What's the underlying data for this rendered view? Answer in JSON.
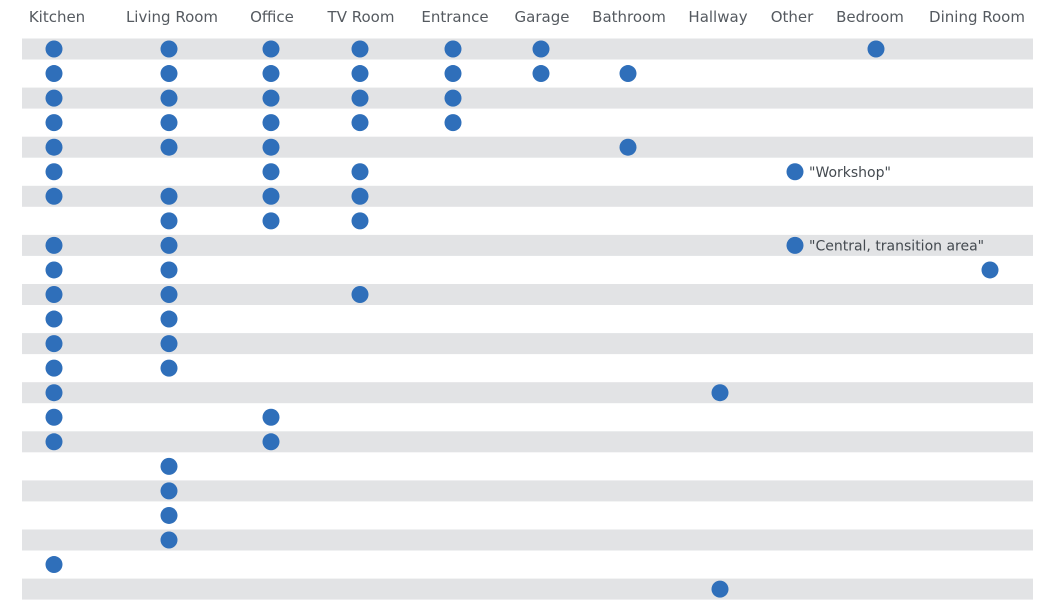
{
  "chart_data": {
    "type": "scatter",
    "title": "",
    "xlabel": "",
    "ylabel": "",
    "categories": [
      "Kitchen",
      "Living Room",
      "Office",
      "TV Room",
      "Entrance",
      "Garage",
      "Bathroom",
      "Hallway",
      "Other",
      "Bedroom",
      "Dining Room"
    ],
    "row_count": 24,
    "alternating_row_bands": true,
    "marker_color": "#2f6fba",
    "band_color": "#e2e3e5",
    "points": [
      {
        "row": 1,
        "category": "Kitchen"
      },
      {
        "row": 1,
        "category": "Living Room"
      },
      {
        "row": 1,
        "category": "Office"
      },
      {
        "row": 1,
        "category": "TV Room"
      },
      {
        "row": 1,
        "category": "Entrance"
      },
      {
        "row": 1,
        "category": "Garage"
      },
      {
        "row": 1,
        "category": "Bedroom"
      },
      {
        "row": 2,
        "category": "Kitchen"
      },
      {
        "row": 2,
        "category": "Living Room"
      },
      {
        "row": 2,
        "category": "Office"
      },
      {
        "row": 2,
        "category": "TV Room"
      },
      {
        "row": 2,
        "category": "Entrance"
      },
      {
        "row": 2,
        "category": "Garage"
      },
      {
        "row": 2,
        "category": "Bathroom"
      },
      {
        "row": 3,
        "category": "Kitchen"
      },
      {
        "row": 3,
        "category": "Living Room"
      },
      {
        "row": 3,
        "category": "Office"
      },
      {
        "row": 3,
        "category": "TV Room"
      },
      {
        "row": 3,
        "category": "Entrance"
      },
      {
        "row": 4,
        "category": "Kitchen"
      },
      {
        "row": 4,
        "category": "Living Room"
      },
      {
        "row": 4,
        "category": "Office"
      },
      {
        "row": 4,
        "category": "TV Room"
      },
      {
        "row": 4,
        "category": "Entrance"
      },
      {
        "row": 5,
        "category": "Kitchen"
      },
      {
        "row": 5,
        "category": "Living Room"
      },
      {
        "row": 5,
        "category": "Office"
      },
      {
        "row": 5,
        "category": "Bathroom"
      },
      {
        "row": 6,
        "category": "Kitchen"
      },
      {
        "row": 6,
        "category": "Office"
      },
      {
        "row": 6,
        "category": "TV Room"
      },
      {
        "row": 6,
        "category": "Other",
        "label": "\"Workshop\""
      },
      {
        "row": 7,
        "category": "Kitchen"
      },
      {
        "row": 7,
        "category": "Living Room"
      },
      {
        "row": 7,
        "category": "Office"
      },
      {
        "row": 7,
        "category": "TV Room"
      },
      {
        "row": 8,
        "category": "Living Room"
      },
      {
        "row": 8,
        "category": "Office"
      },
      {
        "row": 8,
        "category": "TV Room"
      },
      {
        "row": 9,
        "category": "Kitchen"
      },
      {
        "row": 9,
        "category": "Living Room"
      },
      {
        "row": 9,
        "category": "Other",
        "label": "\"Central, transition area\""
      },
      {
        "row": 10,
        "category": "Kitchen"
      },
      {
        "row": 10,
        "category": "Living Room"
      },
      {
        "row": 10,
        "category": "Dining Room"
      },
      {
        "row": 11,
        "category": "Kitchen"
      },
      {
        "row": 11,
        "category": "Living Room"
      },
      {
        "row": 11,
        "category": "TV Room"
      },
      {
        "row": 12,
        "category": "Kitchen"
      },
      {
        "row": 12,
        "category": "Living Room"
      },
      {
        "row": 13,
        "category": "Kitchen"
      },
      {
        "row": 13,
        "category": "Living Room"
      },
      {
        "row": 14,
        "category": "Kitchen"
      },
      {
        "row": 14,
        "category": "Living Room"
      },
      {
        "row": 15,
        "category": "Kitchen"
      },
      {
        "row": 15,
        "category": "Hallway"
      },
      {
        "row": 16,
        "category": "Kitchen"
      },
      {
        "row": 16,
        "category": "Office"
      },
      {
        "row": 17,
        "category": "Kitchen"
      },
      {
        "row": 17,
        "category": "Office"
      },
      {
        "row": 18,
        "category": "Living Room"
      },
      {
        "row": 19,
        "category": "Living Room"
      },
      {
        "row": 20,
        "category": "Living Room"
      },
      {
        "row": 21,
        "category": "Living Room"
      },
      {
        "row": 22,
        "category": "Kitchen"
      },
      {
        "row": 23,
        "category": "Hallway"
      }
    ]
  }
}
